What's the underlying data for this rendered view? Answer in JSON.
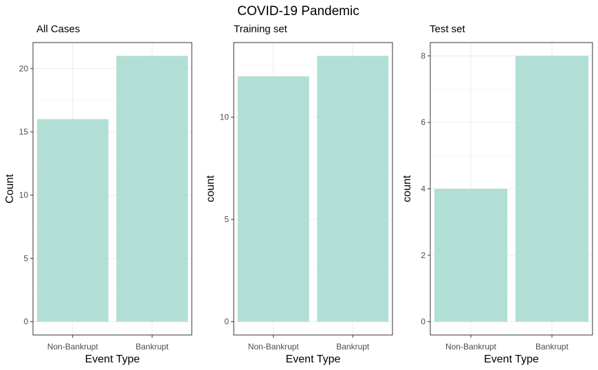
{
  "figure": {
    "title": "COVID-19 Pandemic"
  },
  "colors": {
    "bar": "#b2dfd5",
    "frame": "#333333",
    "grid": "#ebebeb"
  },
  "chart_data": [
    {
      "type": "bar",
      "title": "All Cases",
      "xlabel": "Event Type",
      "ylabel": "Count",
      "categories": [
        "Non-Bankrupt",
        "Bankrupt"
      ],
      "values": [
        16,
        21
      ],
      "ylim": [
        -1.05,
        22.05
      ],
      "yticks": [
        0,
        5,
        10,
        15,
        20
      ],
      "grid": true
    },
    {
      "type": "bar",
      "title": "Training set",
      "xlabel": "Event Type",
      "ylabel": "count",
      "categories": [
        "Non-Bankrupt",
        "Bankrupt"
      ],
      "values": [
        12,
        13
      ],
      "ylim": [
        -0.65,
        13.65
      ],
      "yticks": [
        0,
        5,
        10
      ],
      "grid": true
    },
    {
      "type": "bar",
      "title": "Test set",
      "xlabel": "Event Type",
      "ylabel": "count",
      "categories": [
        "Non-Bankrupt",
        "Bankrupt"
      ],
      "values": [
        4,
        8
      ],
      "ylim": [
        -0.4,
        8.4
      ],
      "yticks": [
        0,
        2,
        4,
        6,
        8
      ],
      "grid": true
    }
  ]
}
